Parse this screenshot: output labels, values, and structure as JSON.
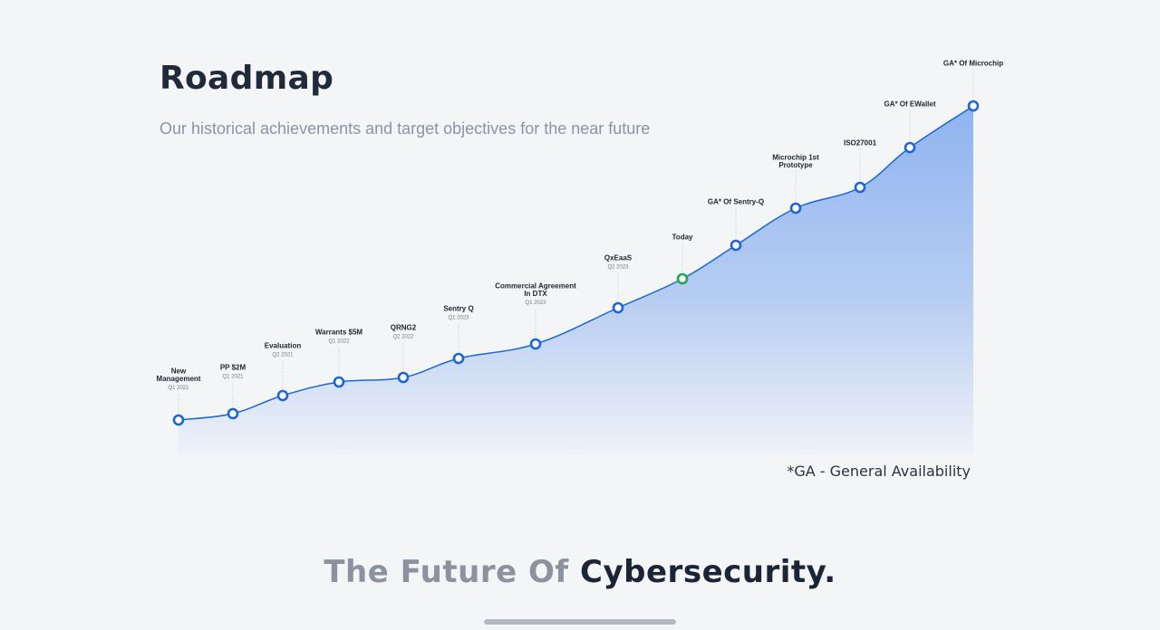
{
  "header": {
    "title": "Roadmap",
    "subtitle": "Our historical achievements and target objectives for the near future"
  },
  "colors": {
    "line": "#1e66d0",
    "marker_past": "#1e66d0",
    "marker_today": "#23a455",
    "fill_top": "#8fb4f0",
    "fill_bottom": "#eef2f8"
  },
  "milestones": [
    {
      "title": [
        "New",
        "Management"
      ],
      "date": "Q1 2021",
      "type": "past"
    },
    {
      "title": [
        "PP $2M"
      ],
      "date": "Q1 2021",
      "type": "past"
    },
    {
      "title": [
        "Evaluation"
      ],
      "date": "Q2 2021",
      "type": "past"
    },
    {
      "title": [
        "Warrants $5M"
      ],
      "date": "Q1 2022",
      "type": "past"
    },
    {
      "title": [
        "QRNG2"
      ],
      "date": "Q2 2022",
      "type": "past"
    },
    {
      "title": [
        "Sentry Q"
      ],
      "date": "Q1 2023",
      "type": "past"
    },
    {
      "title": [
        "Commercial Agreement",
        "In DTX"
      ],
      "date": "Q1 2023",
      "type": "past"
    },
    {
      "title": [
        "QxEaaS"
      ],
      "date": "Q2 2023",
      "type": "past"
    },
    {
      "title": [
        "Today"
      ],
      "date": "",
      "type": "today"
    },
    {
      "title": [
        "GA* Of Sentry-Q"
      ],
      "date": "",
      "type": "future"
    },
    {
      "title": [
        "Microchip 1st",
        "Prototype"
      ],
      "date": "",
      "type": "future"
    },
    {
      "title": [
        "ISO27001"
      ],
      "date": "",
      "type": "future"
    },
    {
      "title": [
        "GA* Of EWallet"
      ],
      "date": "",
      "type": "future"
    },
    {
      "title": [
        "GA* Of Microchip"
      ],
      "date": "",
      "type": "future"
    }
  ],
  "footnote": "*GA - General Availability",
  "tagline": {
    "muted": "The Future Of ",
    "strong": "Cybersecurity."
  }
}
